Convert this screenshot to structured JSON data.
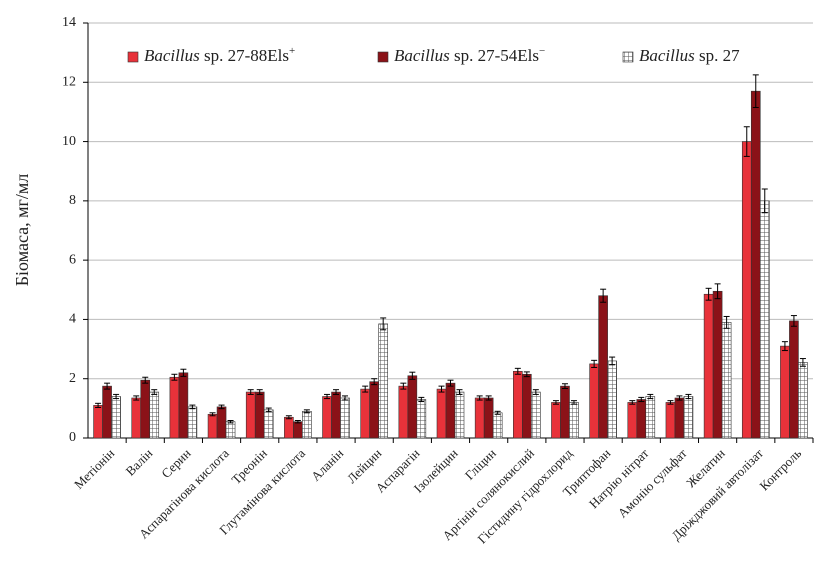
{
  "chart_data": {
    "type": "bar",
    "y_label": "Біомаса, мг/мл",
    "categories": [
      "Метіонін",
      "Валін",
      "Серин",
      "Аспарагінова кислота",
      "Треонін",
      "Глутамінова кислота",
      "Аланін",
      "Лейцин",
      "Аспарагін",
      "Ізолейцин",
      "Гліцин",
      "Аргінін солянокислий",
      "Гістидину гідрохлорид",
      "Триптофан",
      "Натрію нітрат",
      "Амонію сульфат",
      "Желатин",
      "Дріжджовий автолізат",
      "Контроль"
    ],
    "series": [
      {
        "name": "Bacillus sp. 27-88Els+",
        "color": "#e8323a",
        "values": [
          1.1,
          1.35,
          2.05,
          0.8,
          1.55,
          0.7,
          1.4,
          1.65,
          1.75,
          1.65,
          1.35,
          2.25,
          1.2,
          2.5,
          1.2,
          1.2,
          4.85,
          10.0,
          3.1
        ],
        "errors": [
          0.07,
          0.07,
          0.1,
          0.05,
          0.08,
          0.05,
          0.07,
          0.1,
          0.1,
          0.1,
          0.07,
          0.1,
          0.06,
          0.12,
          0.06,
          0.06,
          0.2,
          0.5,
          0.15
        ]
      },
      {
        "name": "Bacillus sp. 27-54Els−",
        "color": "#8b1218",
        "values": [
          1.75,
          1.95,
          2.2,
          1.05,
          1.55,
          0.55,
          1.55,
          1.9,
          2.1,
          1.85,
          1.35,
          2.15,
          1.75,
          4.8,
          1.3,
          1.35,
          4.95,
          11.7,
          3.95
        ],
        "errors": [
          0.1,
          0.1,
          0.12,
          0.06,
          0.08,
          0.04,
          0.08,
          0.1,
          0.12,
          0.1,
          0.07,
          0.08,
          0.08,
          0.22,
          0.07,
          0.07,
          0.25,
          0.55,
          0.18
        ]
      },
      {
        "name": "Bacillus sp. 27",
        "color": "#555555",
        "pattern": "grid",
        "values": [
          1.4,
          1.55,
          1.05,
          0.55,
          0.95,
          0.9,
          1.35,
          3.85,
          1.3,
          1.55,
          0.85,
          1.55,
          1.2,
          2.6,
          1.4,
          1.4,
          3.9,
          8.0,
          2.55
        ],
        "errors": [
          0.07,
          0.08,
          0.06,
          0.04,
          0.06,
          0.05,
          0.07,
          0.2,
          0.07,
          0.08,
          0.05,
          0.08,
          0.06,
          0.13,
          0.07,
          0.07,
          0.2,
          0.4,
          0.13
        ]
      }
    ],
    "ylim": [
      0,
      14
    ],
    "yticks": [
      0,
      2,
      4,
      6,
      8,
      10,
      12,
      14
    ],
    "grid": true,
    "legend": "top-right"
  }
}
